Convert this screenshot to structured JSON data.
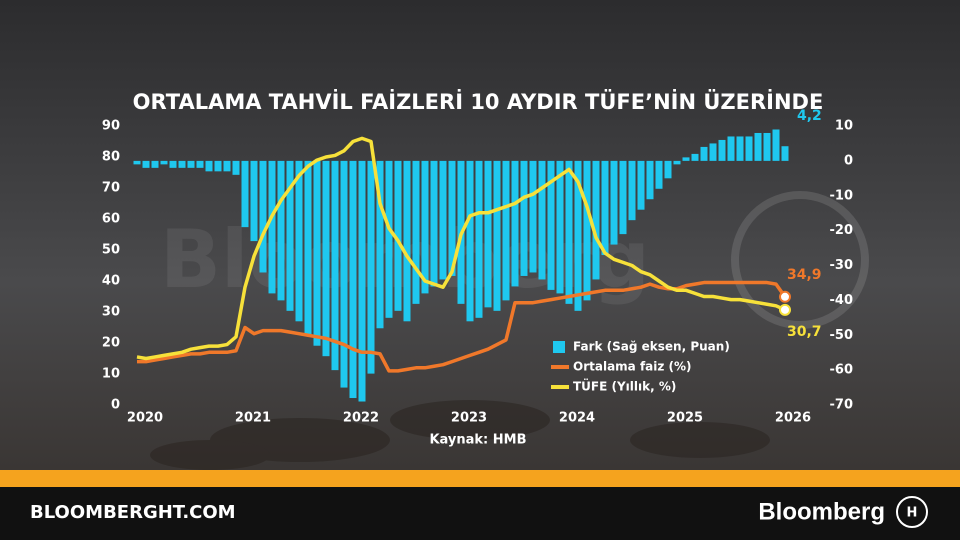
{
  "chart_data": {
    "type": "bar_line_dual",
    "title": "ORTALAMA TAHVİL FAİZLERİ 10 AYDIR TÜFE’NİN ÜZERİNDE",
    "source": "Kaynak: HMB",
    "categories": [
      "2020",
      null,
      null,
      null,
      null,
      null,
      null,
      null,
      null,
      null,
      null,
      null,
      "2021",
      null,
      null,
      null,
      null,
      null,
      null,
      null,
      null,
      null,
      null,
      null,
      "2022",
      null,
      null,
      null,
      null,
      null,
      null,
      null,
      null,
      null,
      null,
      null,
      "2023",
      null,
      null,
      null,
      null,
      null,
      null,
      null,
      null,
      null,
      null,
      null,
      "2024",
      null,
      null,
      null,
      null,
      null,
      null,
      null,
      null,
      null,
      null,
      null,
      "2025",
      null,
      null,
      null,
      null,
      null,
      null,
      null,
      null,
      null,
      null,
      null,
      "2026"
    ],
    "ylim": [
      0,
      90
    ],
    "yticks": [
      0,
      10,
      20,
      30,
      40,
      50,
      60,
      70,
      80,
      90
    ],
    "y2lim": [
      -70,
      10
    ],
    "y2ticks": [
      -70,
      -60,
      -50,
      -40,
      -30,
      -20,
      -10,
      0,
      10
    ],
    "legend": "lower-right",
    "grid": false,
    "series": [
      {
        "name": "Fark (Sağ eksen, Puan)",
        "kind": "bar",
        "axis": "y2",
        "color": "#1fc8ef",
        "values": [
          -1,
          -2,
          -2,
          -1,
          -2,
          -2,
          -2,
          -2,
          -3,
          -3,
          -3,
          -4,
          -19,
          -23,
          -32,
          -38,
          -40,
          -43,
          -46,
          -50,
          -53,
          -56,
          -60,
          -65,
          -68,
          -69,
          -61,
          -48,
          -45,
          -43,
          -46,
          -41,
          -38,
          -36,
          -34,
          -33,
          -41,
          -46,
          -45,
          -42,
          -43,
          -40,
          -36,
          -33,
          -32,
          -34,
          -37,
          -38,
          -41,
          -43,
          -40,
          -34,
          -27,
          -24,
          -21,
          -17,
          -14,
          -11,
          -8,
          -5,
          -1,
          1,
          2,
          4,
          5,
          6,
          7,
          7,
          7,
          8,
          8,
          9,
          4.2
        ],
        "value_labels": {
          "72": "4,2"
        }
      },
      {
        "name": "Ortalama faiz (%)",
        "kind": "line",
        "color": "#f0782a",
        "values": [
          14,
          14,
          14.5,
          15,
          15.5,
          16,
          16.5,
          16.5,
          17,
          17,
          17,
          17.5,
          25,
          23,
          24,
          24,
          24,
          23.5,
          23,
          22.5,
          22,
          21.5,
          20.5,
          19.5,
          18,
          17,
          17,
          16.5,
          11,
          11,
          11.5,
          12,
          12,
          12.5,
          13,
          14,
          15,
          16,
          17,
          18,
          19.5,
          21,
          33,
          33,
          33,
          33.5,
          34,
          34.5,
          35,
          35.5,
          36,
          36.5,
          37,
          37,
          37,
          37.5,
          38,
          39,
          38,
          37.5,
          37.5,
          38.5,
          39,
          39.5,
          39.5,
          39.5,
          39.5,
          39.5,
          39.5,
          39.5,
          39.5,
          39,
          34.9
        ],
        "value_labels": {
          "72": "34,9"
        }
      },
      {
        "name": "TÜFE (Yıllık, %)",
        "kind": "line",
        "color": "#f7e13a",
        "values": [
          15.5,
          15,
          15.5,
          16,
          16.5,
          17,
          18,
          18.5,
          19,
          19,
          19.5,
          22,
          38,
          48,
          55,
          61,
          66,
          70,
          74,
          77,
          79,
          80,
          80.5,
          82,
          85,
          86,
          85,
          65,
          57,
          53,
          48,
          44,
          40,
          39,
          38,
          43,
          55,
          61,
          62,
          62,
          63,
          64,
          65,
          67,
          68,
          70,
          72,
          74,
          76,
          72,
          64,
          54,
          49,
          47,
          46,
          45,
          43,
          42,
          40,
          38,
          37,
          37,
          36,
          35,
          35,
          34.5,
          34,
          34,
          33.5,
          33,
          32.5,
          32,
          30.7
        ],
        "value_labels": {
          "72": "30,7"
        }
      }
    ]
  },
  "footer": {
    "site": "BLOOMBERGHT.COM",
    "brand": "Bloomberg"
  }
}
